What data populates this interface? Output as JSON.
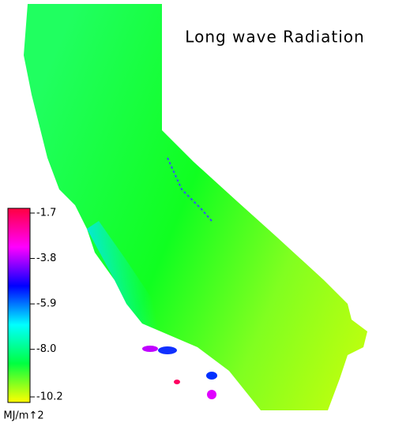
{
  "chart_data": {
    "type": "map",
    "title": "Long wave Radiation",
    "colorbar_label": "MJ/m↑2",
    "clim": [
      -1.7,
      -10.2
    ],
    "cticks": [
      -1.7,
      -3.8,
      -5.9,
      {
        "value": -8,
        "label": "-8.0"
      },
      -10.2
    ],
    "colormap": [
      "#ff0040",
      "#ff00ff",
      "#0000ff",
      "#00ffff",
      "#00ff40",
      "#ffff00"
    ]
  }
}
